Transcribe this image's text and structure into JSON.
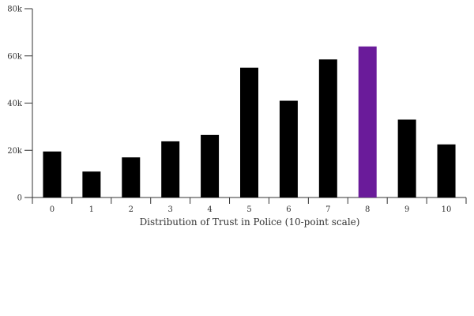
{
  "chart_data": {
    "type": "bar",
    "title": "",
    "xlabel": "Distribution of Trust in Police (10-point scale)",
    "ylabel": "",
    "categories": [
      "0",
      "1",
      "2",
      "3",
      "4",
      "5",
      "6",
      "7",
      "8",
      "9",
      "10"
    ],
    "values": [
      19500,
      11000,
      17000,
      23800,
      26500,
      55000,
      41000,
      58500,
      64000,
      33000,
      22500
    ],
    "ylim": [
      0,
      80000
    ],
    "yticks": [
      {
        "value": 0,
        "label": "0"
      },
      {
        "value": 20000,
        "label": "20k"
      },
      {
        "value": 40000,
        "label": "40k"
      },
      {
        "value": 60000,
        "label": "60k"
      },
      {
        "value": 80000,
        "label": "80k"
      }
    ],
    "grid": false,
    "bar_color": "#000000",
    "highlight_category": "8",
    "highlight_color": "#6a1b9a"
  }
}
